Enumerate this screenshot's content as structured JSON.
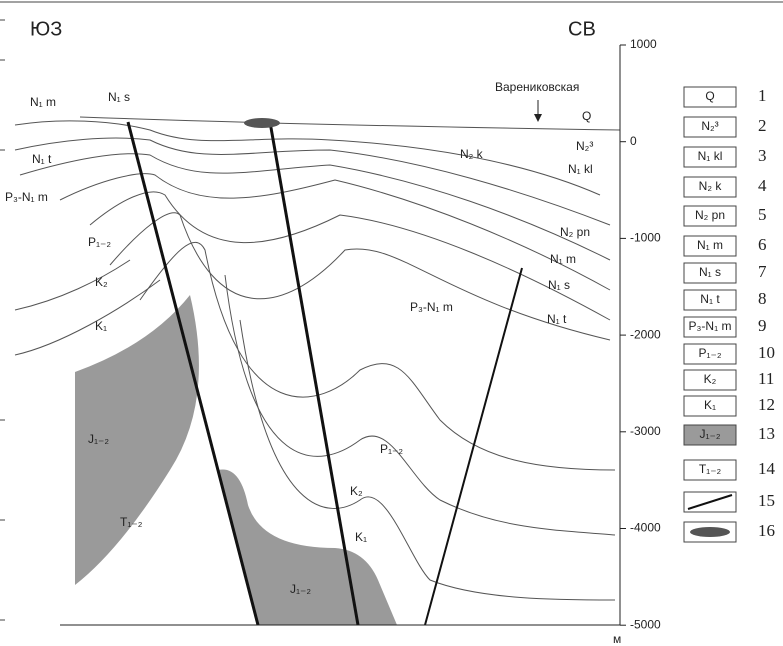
{
  "header": {
    "left": "ЮЗ",
    "right": "СВ"
  },
  "depth_axis": {
    "ticks": [
      "1000",
      "0",
      "-1000",
      "-2000",
      "-3000",
      "-4000",
      "-5000"
    ],
    "unit": "м"
  },
  "place": "Варениковская",
  "section_labels": [
    "N₁ m",
    "N₁ s",
    "N₁ t",
    "P₃-N₁ m",
    "P₁₋₂",
    "K₂",
    "K₁",
    "J₁₋₂",
    "T₁₋₂",
    "J₁₋₂",
    "K₁",
    "K₂",
    "P₁₋₂",
    "P₃-N₁ m",
    "N₂ k",
    "Q",
    "N₂³",
    "N₁ kl",
    "N₂ pn",
    "N₁ m",
    "N₁ s",
    "N₁ t"
  ],
  "legend": [
    {
      "label": "Q",
      "number": "1"
    },
    {
      "label": "N₂³",
      "number": "2"
    },
    {
      "label": "N₁ kl",
      "number": "3"
    },
    {
      "label": "N₂ k",
      "number": "4"
    },
    {
      "label": "N₂ pn",
      "number": "5"
    },
    {
      "label": "N₁ m",
      "number": "6"
    },
    {
      "label": "N₁ s",
      "number": "7"
    },
    {
      "label": "N₁ t",
      "number": "8"
    },
    {
      "label": "P₃-N₁ m",
      "number": "9"
    },
    {
      "label": "P₁₋₂",
      "number": "10"
    },
    {
      "label": "K₂",
      "number": "11"
    },
    {
      "label": "K₁",
      "number": "12"
    },
    {
      "label": "J₁₋₂",
      "number": "13"
    },
    {
      "label": "T₁₋₂",
      "number": "14"
    },
    {
      "number": "15"
    },
    {
      "number": "16"
    }
  ]
}
